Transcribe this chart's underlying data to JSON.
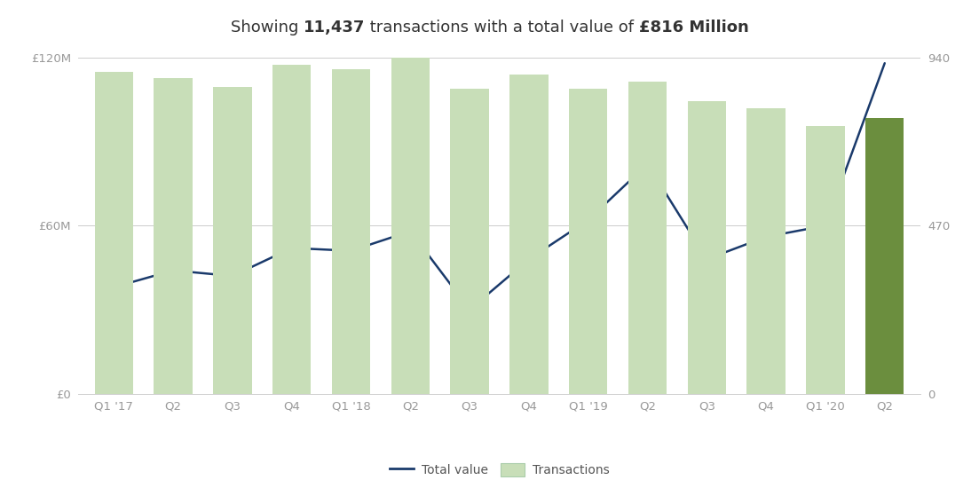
{
  "categories": [
    "Q1 '17",
    "Q2",
    "Q3",
    "Q4",
    "Q1 '18",
    "Q2",
    "Q3",
    "Q4",
    "Q1 '19",
    "Q2",
    "Q3",
    "Q4",
    "Q1 '20",
    "Q2"
  ],
  "bar_values": [
    900,
    882,
    858,
    920,
    908,
    940,
    852,
    892,
    852,
    872,
    818,
    798,
    748,
    772
  ],
  "line_values": [
    38,
    44,
    42,
    52,
    51,
    58,
    30,
    48,
    62,
    82,
    48,
    56,
    60,
    118
  ],
  "bar_colors": [
    "#c8deb8",
    "#c8deb8",
    "#c8deb8",
    "#c8deb8",
    "#c8deb8",
    "#c8deb8",
    "#c8deb8",
    "#c8deb8",
    "#c8deb8",
    "#c8deb8",
    "#c8deb8",
    "#c8deb8",
    "#c8deb8",
    "#6b8e3e"
  ],
  "bar_color_light": "#c8deb8",
  "line_color": "#1a3a6b",
  "title_parts": [
    [
      "Showing ",
      false
    ],
    [
      "11,437",
      true
    ],
    [
      " transactions with a total value of ",
      false
    ],
    [
      "£816 Million",
      true
    ]
  ],
  "title_fontsize": 13,
  "title_color": "#333333",
  "ylim_left": [
    0,
    120
  ],
  "ylim_right": [
    0,
    940
  ],
  "yticks_left": [
    0,
    60,
    120
  ],
  "ytick_labels_left": [
    "£0",
    "£60M",
    "£120M"
  ],
  "yticks_right": [
    0,
    470,
    940
  ],
  "background_color": "#ffffff",
  "grid_color": "#cccccc",
  "tick_color": "#999999",
  "legend_line_label": "Total value",
  "legend_bar_label": "Transactions",
  "tick_fontsize": 9.5,
  "legend_fontsize": 10
}
